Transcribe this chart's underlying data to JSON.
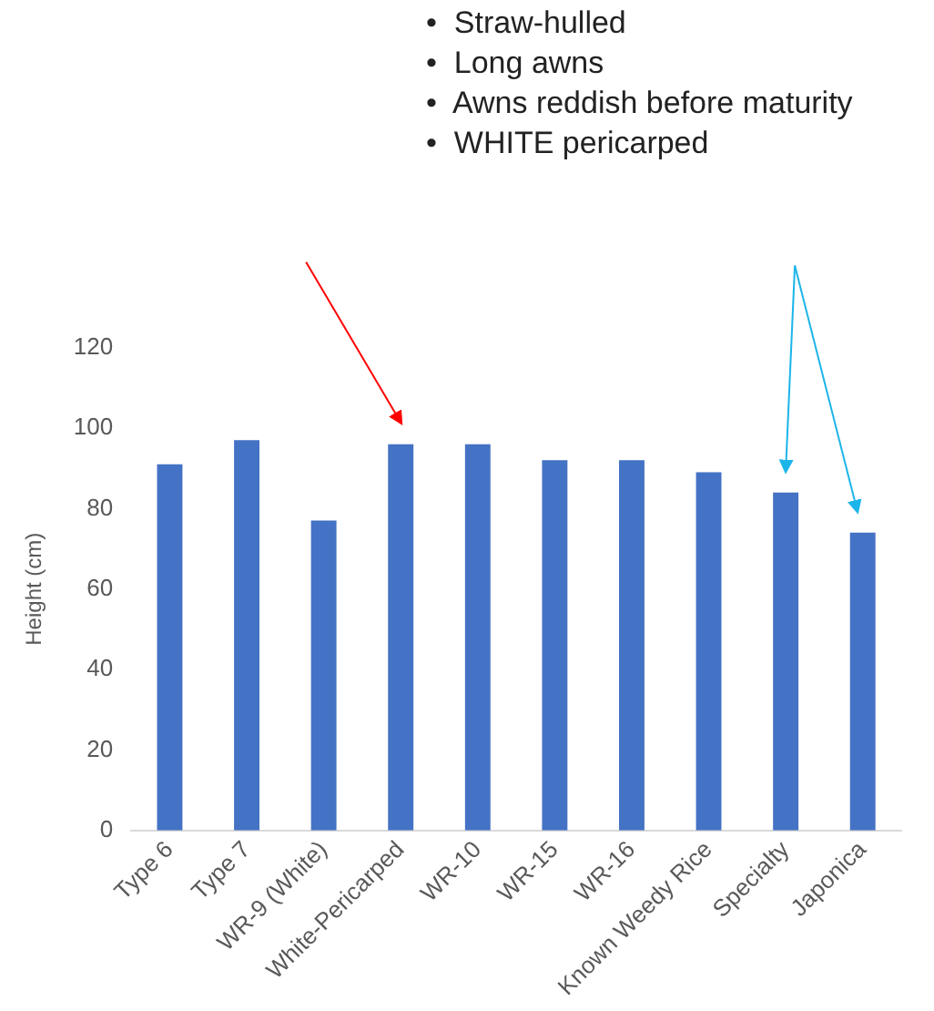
{
  "chart_data": {
    "type": "bar",
    "categories": [
      "Type 6",
      "Type 7",
      "WR-9 (White)",
      "White-Pericarped",
      "WR-10",
      "WR-15",
      "WR-16",
      "Known Weedy Rice",
      "Specialty",
      "Japonica"
    ],
    "values": [
      91,
      97,
      77,
      96,
      96,
      92,
      92,
      89,
      84,
      74
    ],
    "color": "#4472c4",
    "ylabel": "Height (cm)",
    "ylim": [
      0,
      120
    ],
    "yticks": [
      0,
      20,
      40,
      60,
      80,
      100,
      120
    ],
    "annotations": [
      "•  Straw-hulled",
      "•  Long awns",
      "•  Awns reddish before maturity",
      "•  WHITE pericarped"
    ]
  }
}
